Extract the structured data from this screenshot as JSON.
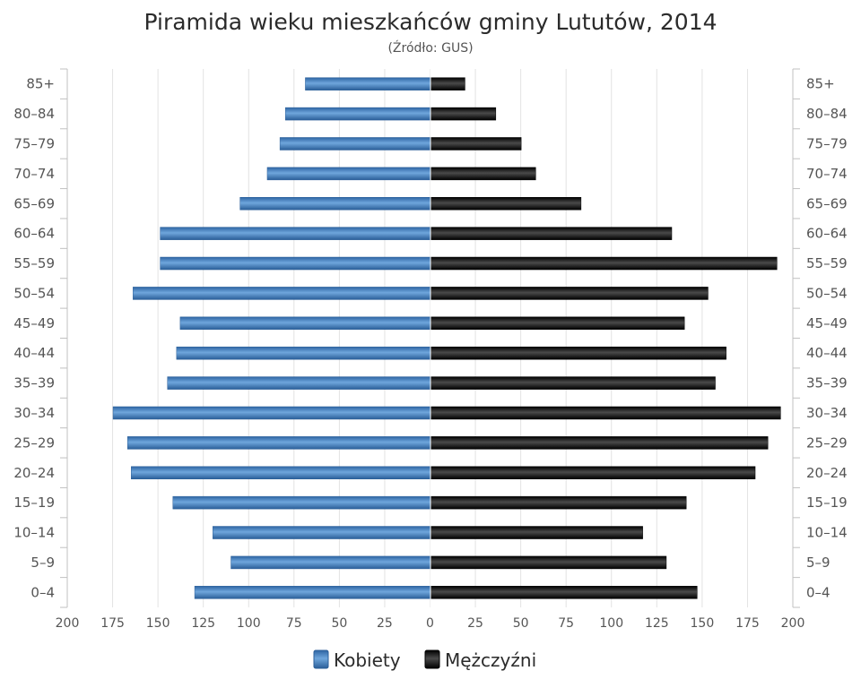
{
  "chart_data": {
    "type": "bar",
    "orientation": "horizontal-pyramid",
    "title": "Piramida wieku mieszkańców gminy Lututów, 2014",
    "subtitle": "(Źródło: GUS)",
    "categories": [
      "85+",
      "80–84",
      "75–79",
      "70–74",
      "65–69",
      "60–64",
      "55–59",
      "50–54",
      "45–49",
      "40–44",
      "35–39",
      "30–34",
      "25–29",
      "20–24",
      "15–19",
      "10–14",
      "5–9",
      "0–4"
    ],
    "series": [
      {
        "name": "Kobiety",
        "side": "left",
        "color": "#3d7fc4",
        "values": [
          69,
          80,
          83,
          90,
          105,
          149,
          149,
          164,
          138,
          140,
          145,
          175,
          167,
          165,
          142,
          120,
          110,
          130
        ]
      },
      {
        "name": "Mężczyźni",
        "side": "right",
        "color": "#111111",
        "values": [
          19,
          36,
          50,
          58,
          83,
          133,
          191,
          153,
          140,
          163,
          157,
          193,
          186,
          179,
          141,
          117,
          130,
          147
        ]
      }
    ],
    "xlim": [
      -200,
      200
    ],
    "xticks": [
      "200",
      "175",
      "150",
      "125",
      "100",
      "75",
      "50",
      "25",
      "0",
      "25",
      "50",
      "75",
      "100",
      "125",
      "150",
      "175",
      "200"
    ],
    "grid": "vertical",
    "legend": "bottom-center"
  }
}
